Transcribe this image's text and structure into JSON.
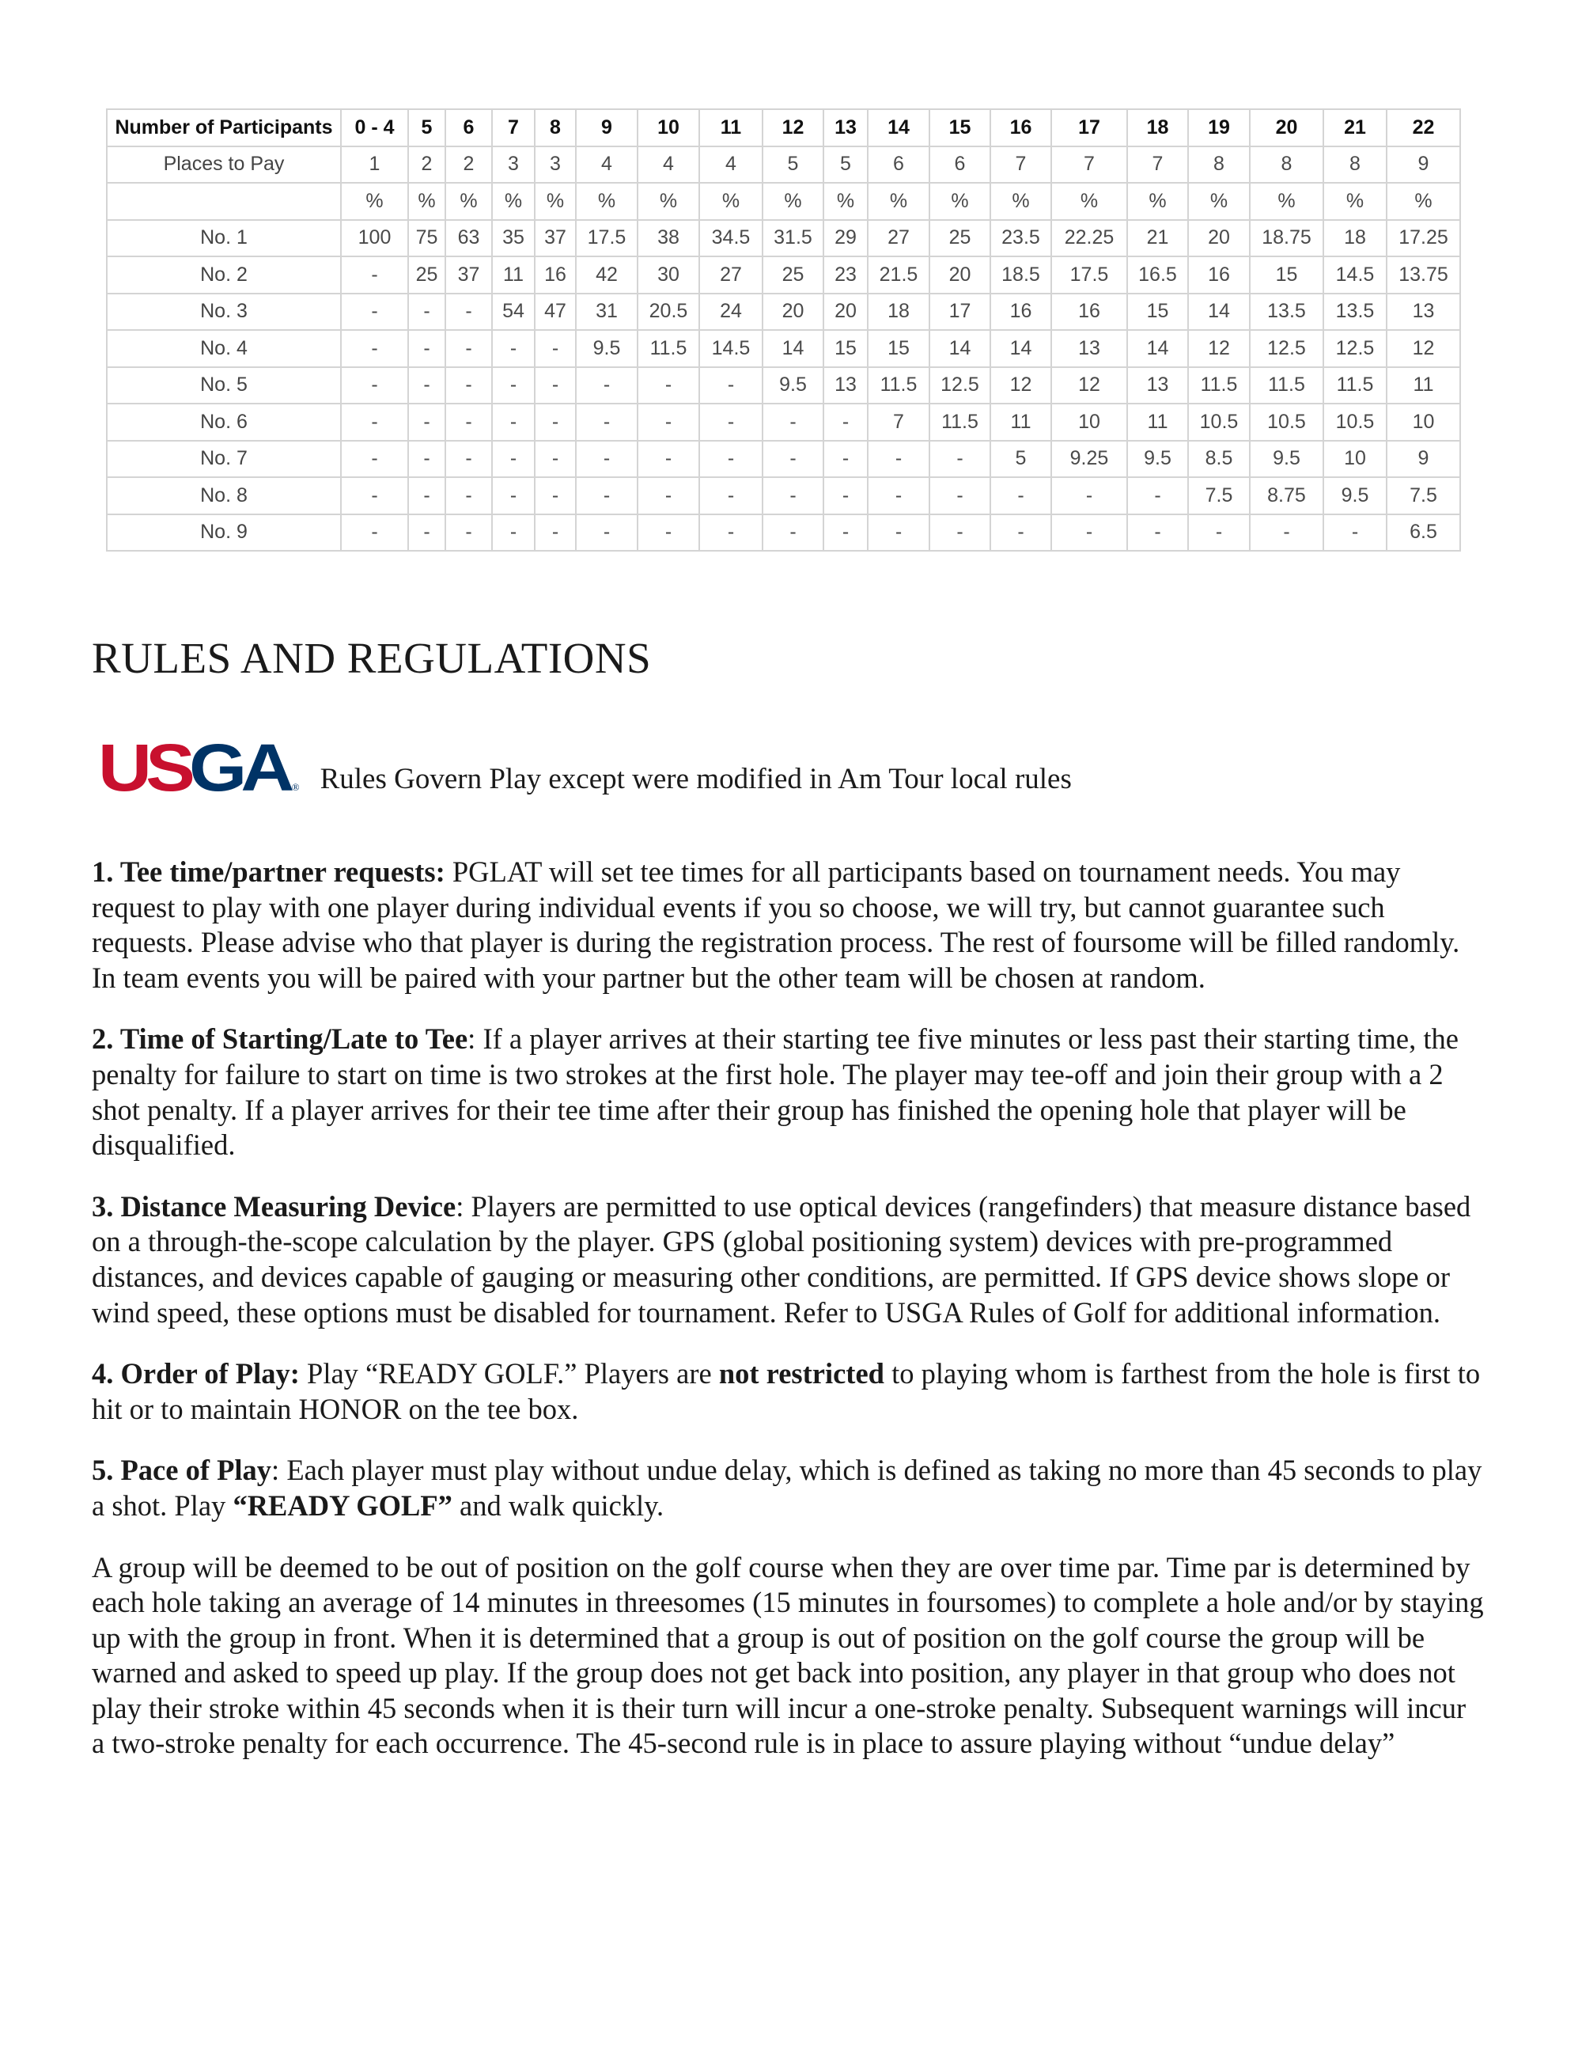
{
  "table": {
    "header": [
      "Number of Participants",
      "0 - 4",
      "5",
      "6",
      "7",
      "8",
      "9",
      "10",
      "11",
      "12",
      "13",
      "14",
      "15",
      "16",
      "17",
      "18",
      "19",
      "20",
      "21",
      "22"
    ],
    "rows": [
      [
        "Places to Pay",
        "1",
        "2",
        "2",
        "3",
        "3",
        "4",
        "4",
        "4",
        "5",
        "5",
        "6",
        "6",
        "7",
        "7",
        "7",
        "8",
        "8",
        "8",
        "9"
      ],
      [
        "",
        "%",
        "%",
        "%",
        "%",
        "%",
        "%",
        "%",
        "%",
        "%",
        "%",
        "%",
        "%",
        "%",
        "%",
        "%",
        "%",
        "%",
        "%",
        "%"
      ],
      [
        "No. 1",
        "100",
        "75",
        "63",
        "35",
        "37",
        "17.5",
        "38",
        "34.5",
        "31.5",
        "29",
        "27",
        "25",
        "23.5",
        "22.25",
        "21",
        "20",
        "18.75",
        "18",
        "17.25"
      ],
      [
        "No. 2",
        "-",
        "25",
        "37",
        "11",
        "16",
        "42",
        "30",
        "27",
        "25",
        "23",
        "21.5",
        "20",
        "18.5",
        "17.5",
        "16.5",
        "16",
        "15",
        "14.5",
        "13.75"
      ],
      [
        "No. 3",
        "-",
        "-",
        "-",
        "54",
        "47",
        "31",
        "20.5",
        "24",
        "20",
        "20",
        "18",
        "17",
        "16",
        "16",
        "15",
        "14",
        "13.5",
        "13.5",
        "13"
      ],
      [
        "No. 4",
        "-",
        "-",
        "-",
        "-",
        "-",
        "9.5",
        "11.5",
        "14.5",
        "14",
        "15",
        "15",
        "14",
        "14",
        "13",
        "14",
        "12",
        "12.5",
        "12.5",
        "12"
      ],
      [
        "No. 5",
        "-",
        "-",
        "-",
        "-",
        "-",
        "-",
        "-",
        "-",
        "9.5",
        "13",
        "11.5",
        "12.5",
        "12",
        "12",
        "13",
        "11.5",
        "11.5",
        "11.5",
        "11"
      ],
      [
        "No. 6",
        "-",
        "-",
        "-",
        "-",
        "-",
        "-",
        "-",
        "-",
        "-",
        "-",
        "7",
        "11.5",
        "11",
        "10",
        "11",
        "10.5",
        "10.5",
        "10.5",
        "10"
      ],
      [
        "No. 7",
        "-",
        "-",
        "-",
        "-",
        "-",
        "-",
        "-",
        "-",
        "-",
        "-",
        "-",
        "-",
        "5",
        "9.25",
        "9.5",
        "8.5",
        "9.5",
        "10",
        "9"
      ],
      [
        "No. 8",
        "-",
        "-",
        "-",
        "-",
        "-",
        "-",
        "-",
        "-",
        "-",
        "-",
        "-",
        "-",
        "-",
        "-",
        "-",
        "7.5",
        "8.75",
        "9.5",
        "7.5"
      ],
      [
        "No. 9",
        "-",
        "-",
        "-",
        "-",
        "-",
        "-",
        "-",
        "-",
        "-",
        "-",
        "-",
        "-",
        "-",
        "-",
        "-",
        "-",
        "-",
        "-",
        "6.5"
      ]
    ]
  },
  "heading": "RULES AND REGULATIONS",
  "logo": {
    "text_us": "US",
    "text_ga": "GA",
    "registered": "®",
    "colors": {
      "red": "#c8102e",
      "blue": "#003366"
    }
  },
  "logo_caption": "Rules Govern Play except were modified in Am Tour local rules",
  "rules": {
    "r1": {
      "num": "1.  ",
      "title": "Tee time/partner requests:",
      "text": " PGLAT will set tee times for all participants based on tournament needs.  You may request to play with one player during individual events if you so choose, we will try, but cannot guarantee such requests.  Please advise who that player is during the registration process.  The rest of foursome will be filled randomly.  In team events you will be paired with your partner but the other team will be chosen at random."
    },
    "r2": {
      "num": "2.  ",
      "title": "Time of Starting/Late to Tee",
      "text": ": If a player arrives at their starting tee five minutes or less past their starting time, the penalty for failure to start on time is two strokes at the first hole. The player may tee-off and join their group with a 2 shot penalty. If a player arrives for their tee time after their group has finished the opening hole that player will be disqualified."
    },
    "r3": {
      "num": "3.  ",
      "title": "Distance Measuring Device",
      "text": ": Players are permitted to use optical devices (rangefinders) that measure distance based on a through-the-scope calculation by the player. GPS (global positioning system) devices with pre-programmed distances, and devices capable of gauging or measuring other conditions, are permitted. If GPS device shows slope or wind speed, these options must be disabled for tournament. Refer to USGA Rules of Golf for additional information."
    },
    "r4": {
      "num": "4.  ",
      "title": "Order of Play:",
      "text_a": "  Play “READY GOLF.”  Players are ",
      "bold": "not restricted",
      "text_b": " to playing whom is farthest from the hole is first to hit or to maintain HONOR on the tee box."
    },
    "r5": {
      "num": "5.  ",
      "title": "Pace of Play",
      "text_a": ": Each player must play without undue delay, which is defined as taking no more than 45 seconds to play a shot. Play ",
      "bold": "“READY GOLF”",
      "text_b": " and walk quickly."
    },
    "pace_detail": "A group will be deemed to be out of position on the golf course when they are over time par. Time par is determined by each hole taking an average of 14 minutes in threesomes (15 minutes in foursomes) to complete a hole and/or by staying up with the group in front. When it is determined that a group is out of position on the golf course the group will be warned and asked to speed up play. If the group does not get back into position, any player in that group who does not play their stroke within 45 seconds when it is their turn will incur a one-stroke penalty. Subsequent warnings will incur a two-stroke penalty for each occurrence. The 45-second rule is in place to assure playing without “undue delay”"
  }
}
